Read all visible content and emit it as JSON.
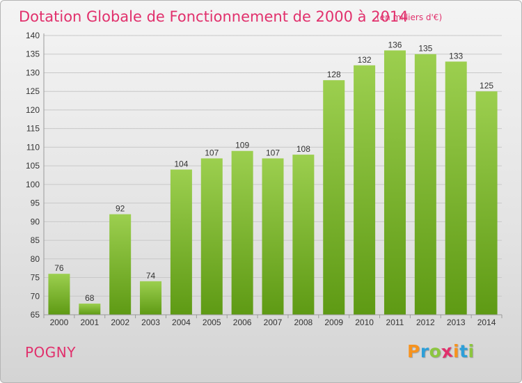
{
  "chart_data": {
    "type": "bar",
    "title": "Dotation Globale de Fonctionnement de 2000 à 2014",
    "subtitle": "(en milliers d'€)",
    "categories": [
      "2000",
      "2001",
      "2002",
      "2003",
      "2004",
      "2005",
      "2006",
      "2007",
      "2008",
      "2009",
      "2010",
      "2011",
      "2012",
      "2013",
      "2014"
    ],
    "values": [
      76,
      68,
      92,
      74,
      104,
      107,
      109,
      107,
      108,
      128,
      132,
      136,
      135,
      133,
      125
    ],
    "ylim": [
      65,
      140
    ],
    "yticks": [
      65,
      70,
      75,
      80,
      85,
      90,
      95,
      100,
      105,
      110,
      115,
      120,
      125,
      130,
      135,
      140
    ],
    "grid": true,
    "bar_color": "#8cc63f"
  },
  "commune": "POGNY",
  "logo": {
    "letters": [
      "P",
      "r",
      "o",
      "x",
      "i",
      "t",
      "i"
    ],
    "colors": [
      "#f7931e",
      "#2e9fd8",
      "#8cc63f",
      "#e1306c",
      "#f7931e",
      "#2e9fd8",
      "#8cc63f"
    ]
  }
}
